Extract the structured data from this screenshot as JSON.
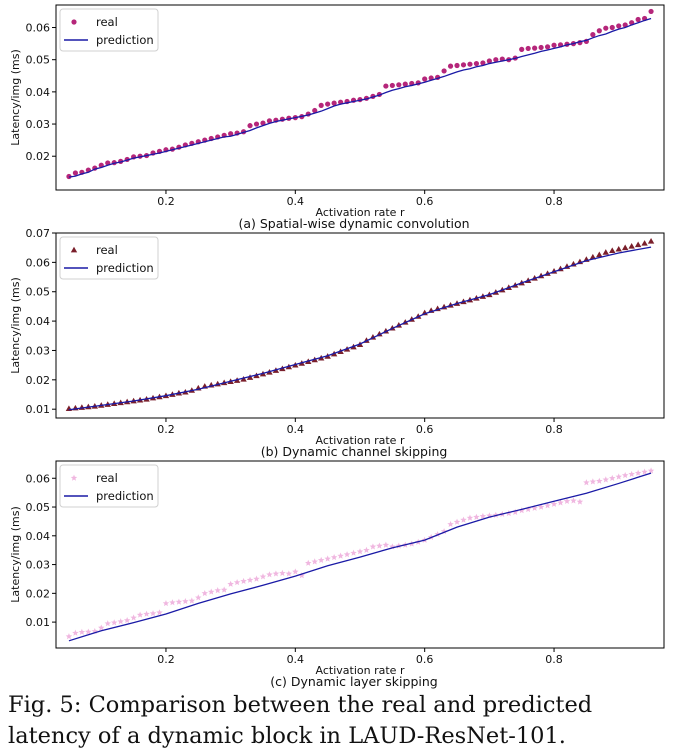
{
  "figure": {
    "caption": "Fig. 5: Comparison between the real and predicted latency of a dynamic block in LAUD-ResNet-101."
  },
  "chart_data": [
    {
      "type": "scatter",
      "subtitle": "(a) Spatial-wise dynamic convolution",
      "xlabel": "Activation rate r",
      "ylabel": "Latency/img (ms)",
      "xlim": [
        0.03,
        0.97
      ],
      "ylim": [
        0.0095,
        0.067
      ],
      "xticks": [
        0.2,
        0.4,
        0.6,
        0.8
      ],
      "xtick_labels": [
        "0.2",
        "0.4",
        "0.6",
        "0.8"
      ],
      "yticks": [
        0.02,
        0.03,
        0.04,
        0.05,
        0.06
      ],
      "ytick_labels": [
        "0.02",
        "0.03",
        "0.04",
        "0.05",
        "0.06"
      ],
      "legend_position": "top-left",
      "series": [
        {
          "name": "real",
          "kind": "scatter",
          "marker": "circle",
          "color": "#b5267a",
          "x": [
            0.05,
            0.06,
            0.07,
            0.08,
            0.09,
            0.1,
            0.11,
            0.12,
            0.13,
            0.14,
            0.15,
            0.16,
            0.17,
            0.18,
            0.19,
            0.2,
            0.21,
            0.22,
            0.23,
            0.24,
            0.25,
            0.26,
            0.27,
            0.28,
            0.29,
            0.3,
            0.31,
            0.32,
            0.33,
            0.34,
            0.35,
            0.36,
            0.37,
            0.38,
            0.39,
            0.4,
            0.41,
            0.42,
            0.43,
            0.44,
            0.45,
            0.46,
            0.47,
            0.48,
            0.49,
            0.5,
            0.51,
            0.52,
            0.53,
            0.54,
            0.55,
            0.56,
            0.57,
            0.58,
            0.59,
            0.6,
            0.61,
            0.62,
            0.63,
            0.64,
            0.65,
            0.66,
            0.67,
            0.68,
            0.69,
            0.7,
            0.71,
            0.72,
            0.73,
            0.74,
            0.75,
            0.76,
            0.77,
            0.78,
            0.79,
            0.8,
            0.81,
            0.82,
            0.83,
            0.84,
            0.85,
            0.86,
            0.87,
            0.88,
            0.89,
            0.9,
            0.91,
            0.92,
            0.93,
            0.94,
            0.95
          ],
          "y": [
            0.0137,
            0.0148,
            0.015,
            0.0157,
            0.0163,
            0.0172,
            0.0179,
            0.018,
            0.0184,
            0.019,
            0.0198,
            0.02,
            0.0202,
            0.021,
            0.0215,
            0.022,
            0.0222,
            0.0228,
            0.0235,
            0.024,
            0.0245,
            0.025,
            0.0255,
            0.026,
            0.0265,
            0.027,
            0.0272,
            0.0276,
            0.0295,
            0.03,
            0.0303,
            0.031,
            0.0312,
            0.0315,
            0.0318,
            0.032,
            0.0323,
            0.0331,
            0.0342,
            0.0358,
            0.0362,
            0.0365,
            0.0368,
            0.037,
            0.0374,
            0.0376,
            0.038,
            0.0386,
            0.0392,
            0.0418,
            0.042,
            0.0422,
            0.0424,
            0.0426,
            0.0428,
            0.044,
            0.0443,
            0.0445,
            0.0465,
            0.048,
            0.0482,
            0.0484,
            0.0486,
            0.0488,
            0.049,
            0.0496,
            0.05,
            0.0502,
            0.05,
            0.0505,
            0.0532,
            0.0535,
            0.0536,
            0.0538,
            0.054,
            0.0545,
            0.0546,
            0.0548,
            0.055,
            0.0553,
            0.0557,
            0.0578,
            0.059,
            0.0598,
            0.06,
            0.0605,
            0.0608,
            0.0615,
            0.0625,
            0.0628,
            0.065
          ]
        },
        {
          "name": "prediction",
          "kind": "line",
          "color": "#1a1aa6",
          "x": [
            0.05,
            0.06,
            0.07,
            0.08,
            0.09,
            0.1,
            0.11,
            0.12,
            0.13,
            0.14,
            0.15,
            0.16,
            0.17,
            0.18,
            0.19,
            0.2,
            0.21,
            0.22,
            0.23,
            0.24,
            0.25,
            0.26,
            0.27,
            0.28,
            0.29,
            0.3,
            0.31,
            0.32,
            0.33,
            0.34,
            0.35,
            0.36,
            0.37,
            0.38,
            0.39,
            0.4,
            0.41,
            0.42,
            0.43,
            0.44,
            0.45,
            0.46,
            0.47,
            0.48,
            0.49,
            0.5,
            0.51,
            0.52,
            0.53,
            0.54,
            0.55,
            0.56,
            0.57,
            0.58,
            0.59,
            0.6,
            0.61,
            0.62,
            0.63,
            0.64,
            0.65,
            0.66,
            0.67,
            0.68,
            0.69,
            0.7,
            0.71,
            0.72,
            0.73,
            0.74,
            0.75,
            0.76,
            0.77,
            0.78,
            0.79,
            0.8,
            0.81,
            0.82,
            0.83,
            0.84,
            0.85,
            0.86,
            0.87,
            0.88,
            0.89,
            0.9,
            0.91,
            0.92,
            0.93,
            0.94,
            0.95
          ],
          "y": [
            0.0135,
            0.0138,
            0.0145,
            0.015,
            0.016,
            0.0165,
            0.0172,
            0.0178,
            0.0182,
            0.0188,
            0.0194,
            0.0198,
            0.0202,
            0.0206,
            0.021,
            0.0215,
            0.022,
            0.0225,
            0.023,
            0.0235,
            0.024,
            0.0245,
            0.025,
            0.0255,
            0.026,
            0.0262,
            0.0268,
            0.0274,
            0.028,
            0.0288,
            0.0295,
            0.0302,
            0.0308,
            0.0312,
            0.0316,
            0.032,
            0.0324,
            0.0328,
            0.0334,
            0.034,
            0.0348,
            0.0356,
            0.0362,
            0.0366,
            0.037,
            0.0374,
            0.0378,
            0.0384,
            0.039,
            0.0398,
            0.0405,
            0.041,
            0.0416,
            0.042,
            0.0425,
            0.043,
            0.0436,
            0.0442,
            0.0448,
            0.0455,
            0.0462,
            0.0468,
            0.0472,
            0.0478,
            0.0482,
            0.0488,
            0.0492,
            0.0496,
            0.05,
            0.0504,
            0.051,
            0.0515,
            0.052,
            0.0526,
            0.053,
            0.0535,
            0.054,
            0.0546,
            0.055,
            0.0556,
            0.056,
            0.0568,
            0.0575,
            0.058,
            0.0588,
            0.0595,
            0.06,
            0.0608,
            0.0615,
            0.0622,
            0.0628
          ]
        }
      ]
    },
    {
      "type": "scatter",
      "subtitle": "(b) Dynamic channel skipping",
      "xlabel": "Activation rate r",
      "ylabel": "Latency/img (ms)",
      "xlim": [
        0.03,
        0.97
      ],
      "ylim": [
        0.007,
        0.07
      ],
      "xticks": [
        0.2,
        0.4,
        0.6,
        0.8
      ],
      "xtick_labels": [
        "0.2",
        "0.4",
        "0.6",
        "0.8"
      ],
      "yticks": [
        0.01,
        0.02,
        0.03,
        0.04,
        0.05,
        0.06,
        0.07
      ],
      "ytick_labels": [
        "0.01",
        "0.02",
        "0.03",
        "0.04",
        "0.05",
        "0.06",
        "0.07"
      ],
      "legend_position": "top-left",
      "series": [
        {
          "name": "real",
          "kind": "scatter",
          "marker": "triangle",
          "color": "#7a1f2b",
          "x": [
            0.05,
            0.06,
            0.07,
            0.08,
            0.09,
            0.1,
            0.11,
            0.12,
            0.13,
            0.14,
            0.15,
            0.16,
            0.17,
            0.18,
            0.19,
            0.2,
            0.21,
            0.22,
            0.23,
            0.24,
            0.25,
            0.26,
            0.27,
            0.28,
            0.29,
            0.3,
            0.31,
            0.32,
            0.33,
            0.34,
            0.35,
            0.36,
            0.37,
            0.38,
            0.39,
            0.4,
            0.41,
            0.42,
            0.43,
            0.44,
            0.45,
            0.46,
            0.47,
            0.48,
            0.49,
            0.5,
            0.51,
            0.52,
            0.53,
            0.54,
            0.55,
            0.56,
            0.57,
            0.58,
            0.59,
            0.6,
            0.61,
            0.62,
            0.63,
            0.64,
            0.65,
            0.66,
            0.67,
            0.68,
            0.69,
            0.7,
            0.71,
            0.72,
            0.73,
            0.74,
            0.75,
            0.76,
            0.77,
            0.78,
            0.79,
            0.8,
            0.81,
            0.82,
            0.83,
            0.84,
            0.85,
            0.86,
            0.87,
            0.88,
            0.89,
            0.9,
            0.91,
            0.92,
            0.93,
            0.94,
            0.95
          ],
          "y": [
            0.0102,
            0.0104,
            0.0106,
            0.0108,
            0.011,
            0.0113,
            0.0116,
            0.0119,
            0.0122,
            0.0125,
            0.0128,
            0.0131,
            0.0134,
            0.0138,
            0.0142,
            0.0146,
            0.015,
            0.0155,
            0.0158,
            0.0164,
            0.0172,
            0.0178,
            0.0182,
            0.0186,
            0.019,
            0.0194,
            0.0198,
            0.0202,
            0.0208,
            0.0214,
            0.022,
            0.0226,
            0.0232,
            0.0238,
            0.0244,
            0.025,
            0.0256,
            0.0262,
            0.0268,
            0.0274,
            0.028,
            0.0288,
            0.0296,
            0.0304,
            0.0312,
            0.032,
            0.0334,
            0.0345,
            0.0356,
            0.0366,
            0.0376,
            0.0386,
            0.0396,
            0.0406,
            0.0416,
            0.0428,
            0.0436,
            0.0442,
            0.0448,
            0.0454,
            0.046,
            0.0466,
            0.0472,
            0.0478,
            0.0484,
            0.049,
            0.0498,
            0.0506,
            0.0514,
            0.0522,
            0.053,
            0.0538,
            0.0546,
            0.0554,
            0.0562,
            0.057,
            0.0578,
            0.0586,
            0.0594,
            0.0602,
            0.061,
            0.0618,
            0.0626,
            0.0634,
            0.064,
            0.0645,
            0.065,
            0.0655,
            0.066,
            0.0665,
            0.0672
          ]
        },
        {
          "name": "prediction",
          "kind": "line",
          "color": "#1a1aa6",
          "x": [
            0.05,
            0.1,
            0.15,
            0.2,
            0.25,
            0.3,
            0.35,
            0.4,
            0.45,
            0.5,
            0.55,
            0.6,
            0.65,
            0.7,
            0.75,
            0.8,
            0.85,
            0.9,
            0.95
          ],
          "y": [
            0.0098,
            0.0113,
            0.0128,
            0.0146,
            0.0168,
            0.0195,
            0.0222,
            0.0252,
            0.0282,
            0.0322,
            0.0375,
            0.0425,
            0.046,
            0.049,
            0.053,
            0.0568,
            0.0606,
            0.0632,
            0.0652
          ]
        }
      ]
    },
    {
      "type": "scatter",
      "subtitle": "(c) Dynamic layer skipping",
      "xlabel": "Activation rate r",
      "ylabel": "Latency/img (ms)",
      "xlim": [
        0.03,
        0.97
      ],
      "ylim": [
        0.001,
        0.066
      ],
      "xticks": [
        0.2,
        0.4,
        0.6,
        0.8
      ],
      "xtick_labels": [
        "0.2",
        "0.4",
        "0.6",
        "0.8"
      ],
      "yticks": [
        0.01,
        0.02,
        0.03,
        0.04,
        0.05,
        0.06
      ],
      "ytick_labels": [
        "0.01",
        "0.02",
        "0.03",
        "0.04",
        "0.05",
        "0.06"
      ],
      "legend_position": "top-left",
      "series": [
        {
          "name": "real",
          "kind": "scatter",
          "marker": "star",
          "color": "#f0b7e0",
          "x": [
            0.05,
            0.06,
            0.07,
            0.08,
            0.09,
            0.1,
            0.11,
            0.12,
            0.13,
            0.14,
            0.15,
            0.16,
            0.17,
            0.18,
            0.19,
            0.2,
            0.21,
            0.22,
            0.23,
            0.24,
            0.25,
            0.26,
            0.27,
            0.28,
            0.29,
            0.3,
            0.31,
            0.32,
            0.33,
            0.34,
            0.35,
            0.36,
            0.37,
            0.38,
            0.39,
            0.4,
            0.41,
            0.42,
            0.43,
            0.44,
            0.45,
            0.46,
            0.47,
            0.48,
            0.49,
            0.5,
            0.51,
            0.52,
            0.53,
            0.54,
            0.55,
            0.56,
            0.57,
            0.58,
            0.59,
            0.6,
            0.61,
            0.62,
            0.63,
            0.64,
            0.65,
            0.66,
            0.67,
            0.68,
            0.69,
            0.7,
            0.71,
            0.72,
            0.73,
            0.74,
            0.75,
            0.76,
            0.77,
            0.78,
            0.79,
            0.8,
            0.81,
            0.82,
            0.83,
            0.84,
            0.85,
            0.86,
            0.87,
            0.88,
            0.89,
            0.9,
            0.91,
            0.92,
            0.93,
            0.94,
            0.95
          ],
          "y": [
            0.005,
            0.0062,
            0.0065,
            0.0066,
            0.0068,
            0.008,
            0.0095,
            0.0098,
            0.0102,
            0.0106,
            0.0115,
            0.0125,
            0.0128,
            0.013,
            0.0133,
            0.0165,
            0.0168,
            0.017,
            0.0172,
            0.0174,
            0.0185,
            0.02,
            0.0205,
            0.021,
            0.0212,
            0.0232,
            0.0238,
            0.0242,
            0.0246,
            0.025,
            0.0258,
            0.0265,
            0.0268,
            0.027,
            0.0268,
            0.0275,
            0.0262,
            0.0305,
            0.031,
            0.0315,
            0.032,
            0.0325,
            0.033,
            0.0335,
            0.034,
            0.0345,
            0.035,
            0.0362,
            0.0365,
            0.0368,
            0.0362,
            0.0365,
            0.0368,
            0.0372,
            0.0378,
            0.0385,
            0.0395,
            0.0405,
            0.0415,
            0.044,
            0.0448,
            0.0455,
            0.0462,
            0.0465,
            0.0468,
            0.047,
            0.0472,
            0.0475,
            0.0478,
            0.0482,
            0.0488,
            0.0492,
            0.0496,
            0.05,
            0.0505,
            0.051,
            0.0515,
            0.052,
            0.0522,
            0.0518,
            0.0585,
            0.0588,
            0.059,
            0.0595,
            0.06,
            0.0605,
            0.061,
            0.0614,
            0.0618,
            0.0622,
            0.0626
          ]
        },
        {
          "name": "prediction",
          "kind": "line",
          "color": "#1a1aa6",
          "x": [
            0.05,
            0.1,
            0.15,
            0.2,
            0.25,
            0.3,
            0.35,
            0.4,
            0.45,
            0.5,
            0.55,
            0.6,
            0.65,
            0.7,
            0.75,
            0.8,
            0.85,
            0.9,
            0.95
          ],
          "y": [
            0.0035,
            0.007,
            0.0098,
            0.0128,
            0.0165,
            0.0198,
            0.0228,
            0.026,
            0.0296,
            0.0326,
            0.0358,
            0.0385,
            0.043,
            0.0465,
            0.0492,
            0.052,
            0.0548,
            0.0582,
            0.0618
          ]
        }
      ]
    }
  ]
}
